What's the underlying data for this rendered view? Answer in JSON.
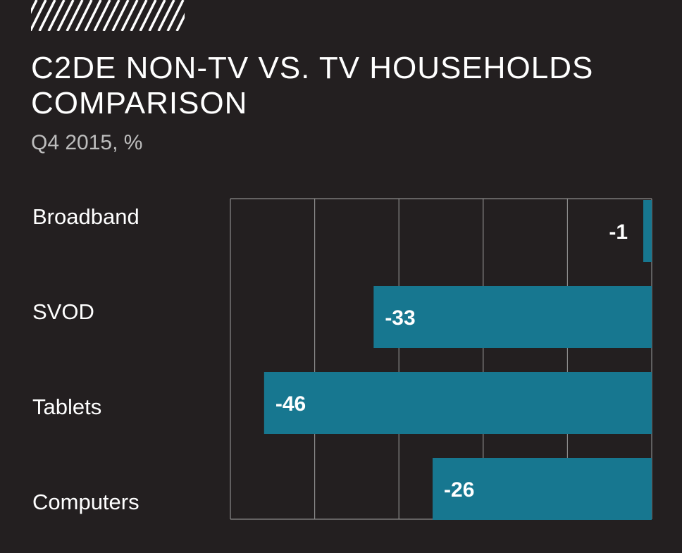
{
  "header": {
    "title": "C2DE NON-TV VS. TV HOUSEHOLDS COMPARISON",
    "subtitle": "Q4 2015, %"
  },
  "colors": {
    "background": "#231f20",
    "bar": "#177790",
    "text": "#ffffff",
    "subtitle": "#bdbdbd",
    "grid": "#8a8a8a"
  },
  "chart_data": {
    "type": "bar",
    "orientation": "horizontal",
    "title": "C2DE NON-TV VS. TV HOUSEHOLDS COMPARISON",
    "subtitle": "Q4 2015, %",
    "categories": [
      "Broadband",
      "SVOD",
      "Tablets",
      "Computers"
    ],
    "values": [
      -1,
      -33,
      -46,
      -26
    ],
    "value_labels": [
      "-1",
      "-33",
      "-46",
      "-26"
    ],
    "xlim": [
      -50,
      0
    ],
    "grid_step": 10,
    "grid": true,
    "legend": "none"
  }
}
